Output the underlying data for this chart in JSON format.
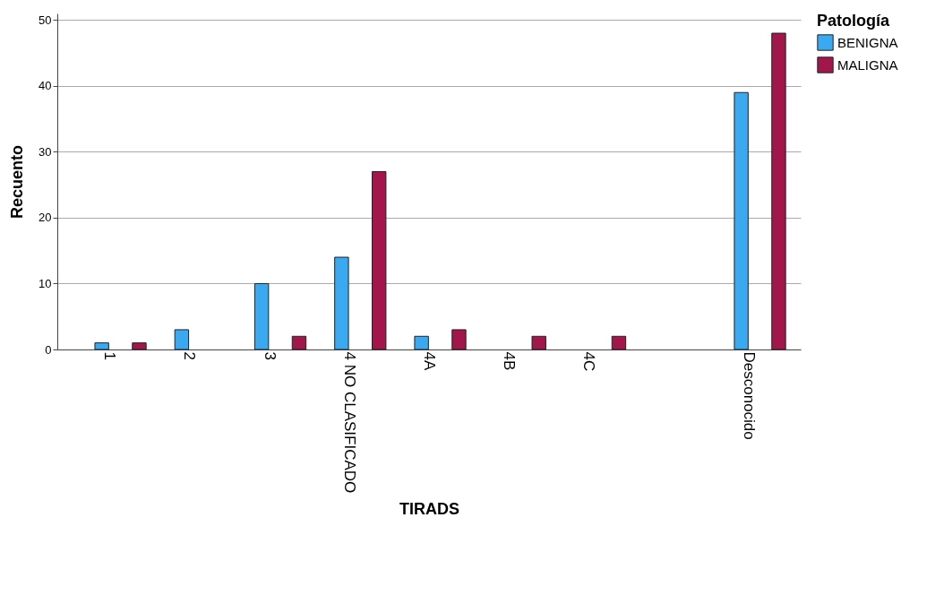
{
  "chart_data": {
    "type": "bar",
    "xlabel": "TIRADS",
    "ylabel": "Recuento",
    "legend_title": "Patología",
    "categories": [
      "1",
      "2",
      "3",
      "4 NO CLASIFICADO",
      "4A",
      "4B",
      "4C",
      null,
      "Desconocido"
    ],
    "series": [
      {
        "name": "BENIGNA",
        "color": "#3aa9ef",
        "values": [
          1,
          3,
          10,
          14,
          2,
          null,
          null,
          null,
          39
        ]
      },
      {
        "name": "MALIGNA",
        "color": "#a1174b",
        "values": [
          1,
          null,
          2,
          27,
          3,
          2,
          2,
          null,
          48
        ]
      }
    ],
    "ylim": [
      0,
      51
    ],
    "yticks": [
      0,
      10,
      20,
      30,
      40,
      50
    ],
    "grid": "y",
    "legend": "top right"
  }
}
